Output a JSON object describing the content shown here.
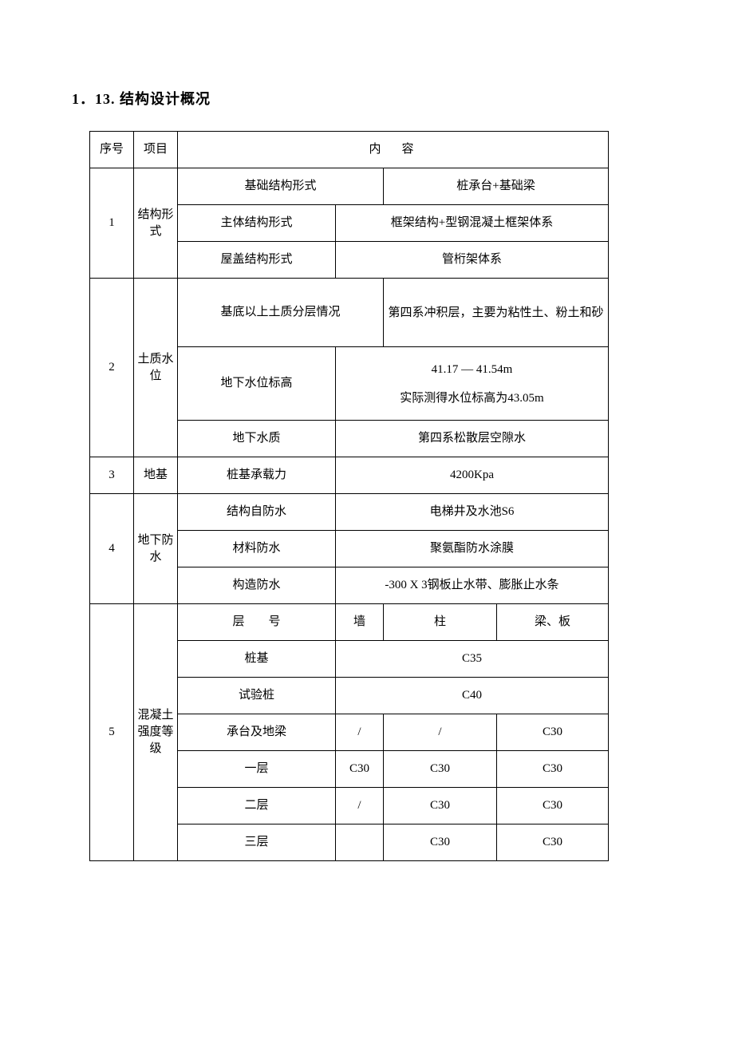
{
  "title": "1．13. 结构设计概况",
  "headers": {
    "xh": "序号",
    "xm": "项目",
    "nr": "内容"
  },
  "rows": {
    "r1": {
      "num": "1",
      "cat": "结构形式",
      "a_label": "基础结构形式",
      "a_value": "桩承台+基础梁",
      "b_label": "主体结构形式",
      "b_value": "框架结构+型钢混凝土框架体系",
      "c_label": "屋盖结构形式",
      "c_value": "管桁架体系"
    },
    "r2": {
      "num": "2",
      "cat": "土质水位",
      "a_label": "基底以上土质分层情况",
      "a_value": "第四系冲积层，主要为粘性土、粉土和砂",
      "b_label": "地下水位标高",
      "b_value": "41.17 — 41.54m\n实际测得水位标高为43.05m",
      "c_label": "地下水质",
      "c_value": "第四系松散层空隙水"
    },
    "r3": {
      "num": "3",
      "cat": "地基",
      "a_label": "桩基承载力",
      "a_value": "4200Kpa"
    },
    "r4": {
      "num": "4",
      "cat": "地下防水",
      "a_label": "结构自防水",
      "a_value": "电梯井及水池S6",
      "b_label": "材料防水",
      "b_value": "聚氨酯防水涂膜",
      "c_label": "构造防水",
      "c_value": "-300 X 3钢板止水带、膨胀止水条"
    },
    "r5": {
      "num": "5",
      "cat": "混凝土强度等 级",
      "head_layer": "层　　号",
      "head_wall": "墙",
      "head_col": "柱",
      "head_beam": "梁、板",
      "rows": {
        "r0": {
          "label": "桩基",
          "span": "C35"
        },
        "r1": {
          "label": "试验桩",
          "span": "C40"
        },
        "r2": {
          "label": "承台及地梁",
          "wall": "/",
          "col": "/",
          "beam": "C30"
        },
        "r3": {
          "label": "一层",
          "wall": "C30",
          "col": "C30",
          "beam": "C30"
        },
        "r4": {
          "label": "二层",
          "wall": "/",
          "col": "C30",
          "beam": "C30"
        },
        "r5": {
          "label": "三层",
          "wall": "",
          "col": "C30",
          "beam": "C30"
        }
      }
    }
  }
}
